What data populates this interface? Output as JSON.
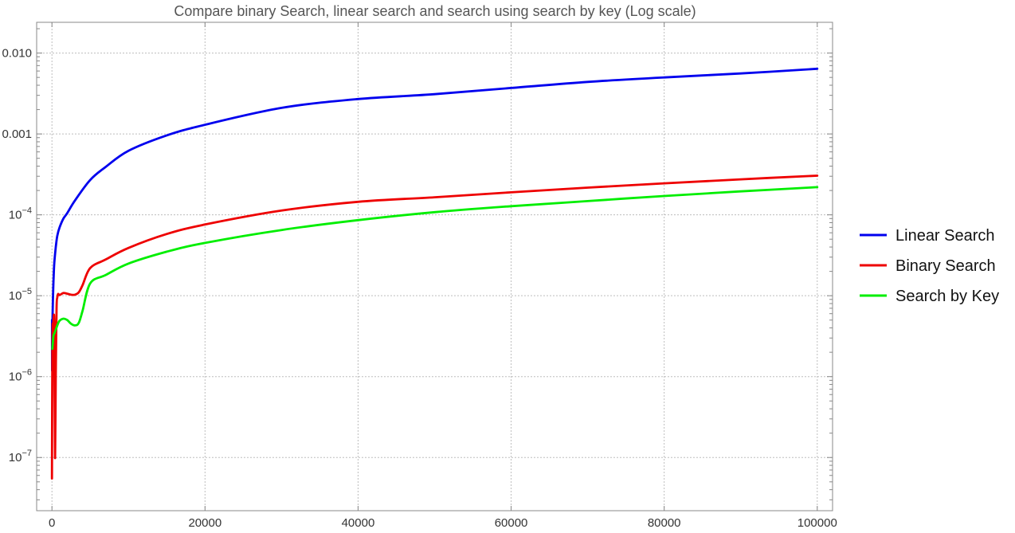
{
  "chart_data": {
    "type": "line",
    "title": "Compare binary Search, linear search and search using search by key (Log scale)",
    "xlabel": "",
    "ylabel": "",
    "yscale": "log",
    "xlim": [
      -2000,
      102000
    ],
    "ylim": [
      2.2e-08,
      0.024
    ],
    "grid": true,
    "legend_position": "right",
    "x_ticks": [
      {
        "value": 0,
        "label": "0"
      },
      {
        "value": 20000,
        "label": "20000"
      },
      {
        "value": 40000,
        "label": "40000"
      },
      {
        "value": 60000,
        "label": "60000"
      },
      {
        "value": 80000,
        "label": "80000"
      },
      {
        "value": 100000,
        "label": "100000"
      }
    ],
    "y_ticks": [
      {
        "value": 1e-07,
        "base": "10",
        "exp": "−7",
        "label": ""
      },
      {
        "value": 1e-06,
        "base": "10",
        "exp": "−6",
        "label": ""
      },
      {
        "value": 1e-05,
        "base": "10",
        "exp": "−5",
        "label": ""
      },
      {
        "value": 0.0001,
        "base": "10",
        "exp": "−4",
        "label": ""
      },
      {
        "value": 0.001,
        "base": "",
        "exp": "",
        "label": "0.001"
      },
      {
        "value": 0.01,
        "base": "",
        "exp": "",
        "label": "0.010"
      }
    ],
    "series": [
      {
        "name": "Linear Search",
        "color": "#0000ee",
        "x": [
          10,
          20,
          50,
          100,
          200,
          300,
          500,
          700,
          1000,
          1500,
          2000,
          3000,
          5000,
          7000,
          10000,
          15000,
          20000,
          30000,
          40000,
          50000,
          60000,
          70000,
          80000,
          90000,
          100000
        ],
        "y": [
          5e-06,
          1.2e-06,
          3e-06,
          7e-06,
          1.5e-05,
          2.5e-05,
          4e-05,
          5.5e-05,
          7e-05,
          9e-05,
          0.000105,
          0.00015,
          0.00027,
          0.00039,
          0.00062,
          0.00096,
          0.0013,
          0.0021,
          0.0027,
          0.0031,
          0.0037,
          0.0044,
          0.005,
          0.0056,
          0.0064
        ]
      },
      {
        "name": "Binary Search",
        "color": "#ee0000",
        "x": [
          0,
          50,
          100,
          150,
          200,
          300,
          400,
          500,
          600,
          700,
          800,
          1000,
          1500,
          2000,
          2500,
          3000,
          3500,
          4000,
          5000,
          7000,
          10000,
          15000,
          20000,
          30000,
          40000,
          50000,
          60000,
          70000,
          80000,
          90000,
          100000
        ],
        "y": [
          5.5e-08,
          2e-06,
          4.5e-06,
          3e-06,
          5e-06,
          4e-06,
          1e-07,
          1.05e-06,
          7e-06,
          9.5e-06,
          1.05e-05,
          1.02e-05,
          1.08e-05,
          1.06e-05,
          1.03e-05,
          1.03e-05,
          1.1e-05,
          1.35e-05,
          2.2e-05,
          2.8e-05,
          3.9e-05,
          5.8e-05,
          7.6e-05,
          0.000113,
          0.000145,
          0.000165,
          0.00019,
          0.000217,
          0.000245,
          0.000275,
          0.000305
        ]
      },
      {
        "name": "Search by Key",
        "color": "#00ee00",
        "x": [
          50,
          100,
          200,
          300,
          500,
          700,
          1000,
          1500,
          2000,
          2500,
          3000,
          3500,
          4000,
          5000,
          7000,
          10000,
          15000,
          20000,
          30000,
          40000,
          50000,
          60000,
          70000,
          80000,
          90000,
          100000
        ],
        "y": [
          2.2e-06,
          2.5e-06,
          3.2e-06,
          3.4e-06,
          3.8e-06,
          4.3e-06,
          4.9e-06,
          5.2e-06,
          5e-06,
          4.5e-06,
          4.3e-06,
          4.6e-06,
          6.5e-06,
          1.42e-05,
          1.8e-05,
          2.5e-05,
          3.5e-05,
          4.5e-05,
          6.5e-05,
          8.6e-05,
          0.000108,
          0.000128,
          0.000148,
          0.000171,
          0.000195,
          0.00022
        ]
      }
    ]
  }
}
